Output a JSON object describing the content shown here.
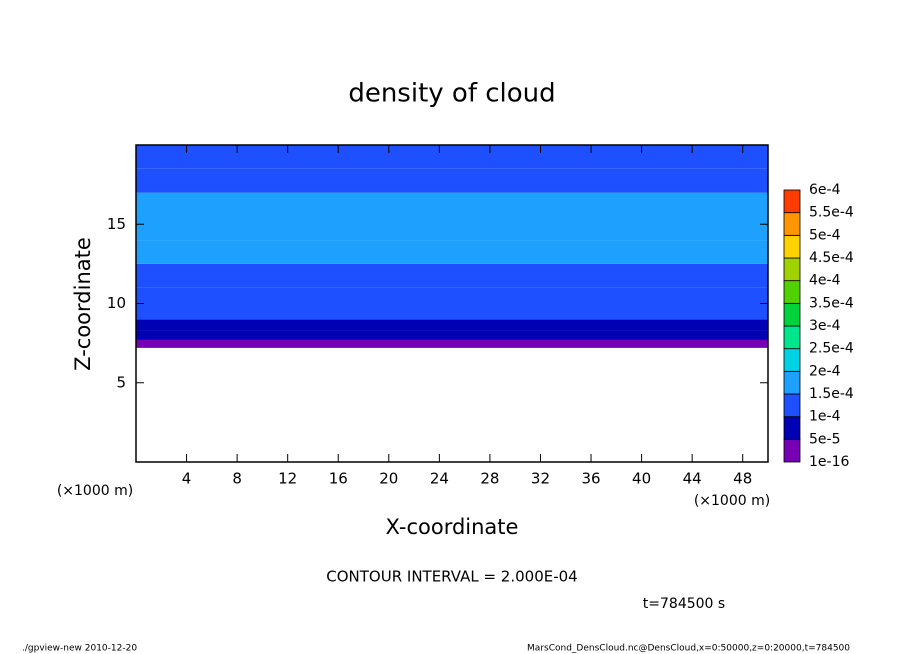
{
  "chart_data": {
    "type": "contour",
    "title": "density of cloud",
    "x_label": "X-coordinate",
    "y_label": "Z-coordinate",
    "x_unit_left": "(×1000 m)",
    "x_unit_right": "(×1000 m)",
    "xlim": [
      0,
      50
    ],
    "xticks": [
      4,
      8,
      12,
      16,
      20,
      24,
      28,
      32,
      36,
      40,
      44,
      48
    ],
    "ylim": [
      0,
      20
    ],
    "yticks": [
      5,
      10,
      15
    ],
    "z_bins": [
      7.2,
      7.7,
      8.3,
      9.0,
      10.0,
      11.0,
      12.5,
      14.0,
      17.0,
      18.5,
      20.0
    ],
    "values": [
      3e-05,
      6e-05,
      8e-05,
      0.000105,
      0.00012,
      0.00014,
      0.00016,
      0.000155,
      0.00013,
      0.00011
    ],
    "levels": [
      {
        "value": 1e-16,
        "label": "1e-16"
      },
      {
        "value": 5e-05,
        "label": "5e-5"
      },
      {
        "value": 0.0001,
        "label": "1e-4"
      },
      {
        "value": 0.00015,
        "label": "1.5e-4"
      },
      {
        "value": 0.0002,
        "label": "2e-4"
      },
      {
        "value": 0.00025,
        "label": "2.5e-4"
      },
      {
        "value": 0.0003,
        "label": "3e-4"
      },
      {
        "value": 0.00035,
        "label": "3.5e-4"
      },
      {
        "value": 0.0004,
        "label": "4e-4"
      },
      {
        "value": 0.00045,
        "label": "4.5e-4"
      },
      {
        "value": 0.0005,
        "label": "5e-4"
      },
      {
        "value": 0.00055,
        "label": "5.5e-4"
      },
      {
        "value": 0.0006,
        "label": "6e-4"
      }
    ],
    "level_colors": [
      "#7800b4",
      "#0000b4",
      "#1e50ff",
      "#1ea0ff",
      "#00d2e6",
      "#00e68c",
      "#00d23c",
      "#50d200",
      "#a0d200",
      "#ffd200",
      "#ff9600",
      "#ff3c00",
      "#ff3c3c",
      "#ff9696"
    ],
    "contour_interval": "CONTOUR INTERVAL = 2.000E-04",
    "time_label": "t=784500 s",
    "footer_left": "./gpview-new  2010-12-20",
    "footer_right": "MarsCond_DensCloud.nc@DensCloud,x=0:50000,z=0:20000,t=784500"
  }
}
